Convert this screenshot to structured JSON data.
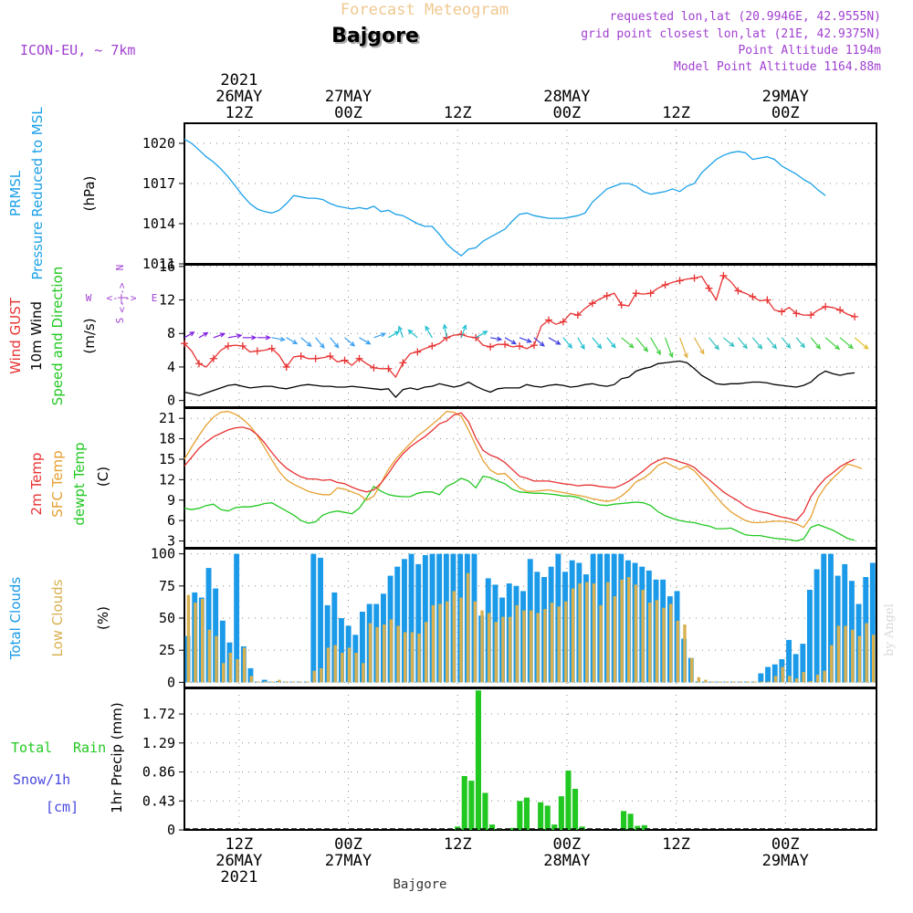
{
  "header": {
    "product": "Forecast Meteogram",
    "location": "Bajgore",
    "model": "ICON-EU, ~ 7km",
    "requested": "requested lon,lat (20.9946E, 42.9555N)",
    "grid_point": "grid point closest lon,lat (21E, 42.9375N)",
    "point_altitude": "Point Altitude 1194m",
    "model_altitude": "Model Point Altitude 1164.88m",
    "credit": "by Angel",
    "footer_location": "Bajgore"
  },
  "time_axis": {
    "year": "2021",
    "top_labels": [
      {
        "h": 18,
        "l1": "26MAY",
        "l2": "12Z",
        "year": "2021"
      },
      {
        "h": 30,
        "l1": "27MAY",
        "l2": "00Z"
      },
      {
        "h": 42,
        "l1": "",
        "l2": "12Z"
      },
      {
        "h": 54,
        "l1": "28MAY",
        "l2": "00Z"
      },
      {
        "h": 66,
        "l1": "",
        "l2": "12Z"
      },
      {
        "h": 78,
        "l1": "29MAY",
        "l2": "00Z"
      }
    ],
    "bottom_labels": [
      {
        "h": 18,
        "l1": "12Z",
        "l2": "26MAY",
        "year": "2021"
      },
      {
        "h": 30,
        "l1": "00Z",
        "l2": "27MAY"
      },
      {
        "h": 42,
        "l1": "12Z",
        "l2": ""
      },
      {
        "h": 54,
        "l1": "00Z",
        "l2": "28MAY"
      },
      {
        "h": 66,
        "l1": "12Z",
        "l2": ""
      },
      {
        "h": 78,
        "l1": "00Z",
        "l2": "29MAY"
      }
    ],
    "x_range_hours": [
      12,
      88
    ]
  },
  "colors": {
    "pressure": "#1aa0e8",
    "gust": "#e83232",
    "wind10": "#000000",
    "temp2m": "#e83232",
    "sfc_temp": "#e6a030",
    "dewpt": "#22c822",
    "total_clouds": "#1a9ae8",
    "low_clouds": "#d8b050",
    "rain": "#22c822",
    "snow": "#4848e0",
    "purple": "#a040d0",
    "header_orange": "#f0c890"
  },
  "chart_data": [
    {
      "type": "line",
      "panel": "pressure",
      "ylabel_1": "PRMSL",
      "ylabel_2": "Pressure Reduced to MSL",
      "unit": "(hPa)",
      "ylim": [
        1011,
        1021.5
      ],
      "yticks": [
        1011,
        1014,
        1017,
        1020
      ],
      "series": [
        {
          "values": [
            1020.3,
            1020.0,
            1019.5,
            1019.0,
            1018.6,
            1018.1,
            1017.5,
            1016.8,
            1016.1,
            1015.5,
            1015.1,
            1014.9,
            1014.8,
            1015.0,
            1015.5,
            1016.1,
            1016.0,
            1015.9,
            1015.9,
            1015.8,
            1015.5,
            1015.3,
            1015.2,
            1015.1,
            1015.2,
            1015.1,
            1015.3,
            1014.9,
            1015.0,
            1014.7,
            1014.6,
            1014.3,
            1014.0,
            1013.8,
            1013.8,
            1013.2,
            1012.5,
            1012.0,
            1011.6,
            1012.1,
            1012.2,
            1012.7,
            1013.0,
            1013.3,
            1013.6,
            1014.2,
            1014.7,
            1014.8,
            1014.6,
            1014.5,
            1014.4,
            1014.4,
            1014.4,
            1014.5,
            1014.6,
            1014.8,
            1015.6,
            1016.1,
            1016.6,
            1016.8,
            1017.0,
            1017.0,
            1016.8,
            1016.4,
            1016.2,
            1016.3,
            1016.4,
            1016.6,
            1016.4,
            1016.8,
            1017.0,
            1017.8,
            1018.3,
            1018.8,
            1019.1,
            1019.3,
            1019.4,
            1019.3,
            1018.8,
            1018.9,
            1019.0,
            1018.8,
            1018.3,
            1018.0,
            1017.7,
            1017.3,
            1017.0,
            1016.5,
            1016.1
          ]
        }
      ]
    },
    {
      "type": "line",
      "panel": "wind",
      "ylabel_1": "Wind GUST",
      "ylabel_2": "10m Wind",
      "ylabel_3": "Speed and Direction",
      "unit": "(m/s)",
      "compass": {
        "n": "N",
        "s": "S",
        "w": "W",
        "e": "E",
        "arrow_h": "<-|->",
        "arrow_v": "<-|->"
      },
      "ylim": [
        -0.8,
        16.2
      ],
      "yticks": [
        0,
        4,
        8,
        12,
        16
      ],
      "gust": [
        6.8,
        5.9,
        4.4,
        4.0,
        5.0,
        6.0,
        6.5,
        6.6,
        6.5,
        5.8,
        5.9,
        6.0,
        6.2,
        5.4,
        4.0,
        5.2,
        5.3,
        5.0,
        5.0,
        5.1,
        5.3,
        4.6,
        4.8,
        4.2,
        5.0,
        4.4,
        3.9,
        3.8,
        3.8,
        2.8,
        4.5,
        5.6,
        5.8,
        6.2,
        6.5,
        6.8,
        7.5,
        7.8,
        7.9,
        7.6,
        7.5,
        6.6,
        6.4,
        6.7,
        6.7,
        6.4,
        6.5,
        6.2,
        6.6,
        8.9,
        9.6,
        9.1,
        9.4,
        10.4,
        10.2,
        11.0,
        11.6,
        12.1,
        12.5,
        12.8,
        11.4,
        11.3,
        12.8,
        12.7,
        12.8,
        13.4,
        13.8,
        14.1,
        14.3,
        14.5,
        14.6,
        14.8,
        13.4,
        12.0,
        14.9,
        14.2,
        13.1,
        12.8,
        12.4,
        11.9,
        12.0,
        10.8,
        10.6,
        11.1,
        10.4,
        10.2,
        10.2,
        10.8,
        11.2,
        11.1,
        10.8,
        10.3,
        10.0
      ],
      "wind10": [
        1.0,
        0.8,
        0.6,
        0.9,
        1.2,
        1.5,
        1.8,
        1.9,
        1.7,
        1.5,
        1.6,
        1.7,
        1.7,
        1.5,
        1.4,
        1.6,
        1.8,
        1.9,
        1.8,
        1.7,
        1.7,
        1.6,
        1.6,
        1.7,
        1.6,
        1.5,
        1.4,
        1.3,
        1.4,
        0.4,
        1.3,
        1.5,
        1.3,
        1.6,
        1.7,
        2.0,
        1.8,
        1.6,
        1.8,
        2.2,
        1.7,
        1.3,
        1.0,
        1.4,
        1.5,
        1.5,
        1.5,
        1.9,
        1.7,
        1.6,
        1.8,
        1.9,
        1.8,
        1.6,
        1.7,
        1.9,
        2.0,
        1.8,
        1.7,
        1.9,
        2.6,
        2.8,
        3.5,
        3.8,
        4.0,
        4.4,
        4.5,
        4.6,
        4.7,
        4.5,
        3.8,
        3.0,
        2.5,
        2.0,
        1.9,
        2.0,
        2.0,
        2.1,
        2.2,
        2.2,
        2.1,
        1.9,
        1.8,
        1.7,
        1.6,
        1.8,
        2.2,
        3.0,
        3.5,
        3.2,
        3.0,
        3.2,
        3.3
      ],
      "wind_dir_deg": [
        240,
        240,
        240,
        240,
        250,
        260,
        260,
        270,
        270,
        270,
        270,
        270,
        280,
        300,
        300,
        300,
        310,
        320,
        320,
        320,
        320,
        320,
        310,
        300,
        300,
        290,
        250,
        240,
        240,
        200,
        160,
        140,
        130,
        140,
        150,
        160,
        170,
        180,
        200,
        220,
        240,
        260,
        280,
        290,
        300,
        300,
        290,
        300,
        310,
        310,
        300,
        300,
        320,
        320,
        330,
        330,
        320,
        320,
        320,
        320,
        310,
        320,
        320,
        330,
        330,
        330,
        340,
        340,
        340,
        340,
        330,
        320,
        320,
        320,
        310,
        320,
        320,
        320,
        320,
        320,
        320,
        320,
        320,
        320,
        320,
        320,
        320,
        310,
        310,
        310,
        310,
        310,
        310
      ]
    },
    {
      "type": "line",
      "panel": "temperature",
      "ylabel_1": "2m Temp",
      "ylabel_2": "SFC Temp",
      "ylabel_3": "dewpt Temp",
      "unit": "(C)",
      "ylim": [
        2,
        22.5
      ],
      "yticks": [
        3,
        6,
        9,
        12,
        15,
        18,
        21
      ],
      "temp2m": [
        14.0,
        15.3,
        16.6,
        17.5,
        18.3,
        18.8,
        19.3,
        19.6,
        19.7,
        19.4,
        18.6,
        17.4,
        16.0,
        14.7,
        13.7,
        13.0,
        12.4,
        12.1,
        12.1,
        11.9,
        12.0,
        11.6,
        11.4,
        10.9,
        10.5,
        10.2,
        10.5,
        11.5,
        12.9,
        14.5,
        15.8,
        16.8,
        17.6,
        18.3,
        19.2,
        20.2,
        20.6,
        21.5,
        21.8,
        20.5,
        18.1,
        16.3,
        15.6,
        15.2,
        14.5,
        13.5,
        12.5,
        12.2,
        11.8,
        11.8,
        11.8,
        11.6,
        11.4,
        11.3,
        11.1,
        11.2,
        11.2,
        11.0,
        10.9,
        10.8,
        11.2,
        11.8,
        12.5,
        13.3,
        14.2,
        14.8,
        15.2,
        15.0,
        14.6,
        14.3,
        13.8,
        12.8,
        12.0,
        11.1,
        10.2,
        9.5,
        8.9,
        8.1,
        7.6,
        7.3,
        7.1,
        6.8,
        6.5,
        6.3,
        6.0,
        7.2,
        9.5,
        11.0,
        12.2,
        13.0,
        13.9,
        14.5,
        15.0
      ],
      "sfc_temp": [
        15.0,
        16.8,
        18.5,
        20.0,
        21.2,
        21.9,
        22.0,
        21.6,
        20.9,
        19.9,
        18.5,
        16.7,
        14.9,
        13.2,
        12.0,
        11.3,
        10.8,
        10.3,
        10.0,
        9.8,
        9.8,
        10.8,
        10.6,
        10.2,
        9.8,
        9.0,
        9.6,
        11.5,
        13.5,
        15.0,
        16.2,
        17.3,
        18.4,
        19.2,
        20.1,
        21.0,
        22.0,
        21.9,
        21.3,
        19.3,
        17.0,
        14.8,
        13.4,
        12.8,
        12.9,
        11.9,
        10.8,
        10.3,
        10.3,
        10.4,
        10.5,
        10.3,
        10.1,
        9.9,
        9.7,
        9.5,
        9.2,
        9.0,
        8.8,
        9.0,
        9.6,
        10.5,
        11.7,
        12.2,
        13.0,
        14.1,
        14.6,
        14.0,
        13.5,
        14.0,
        13.3,
        12.1,
        10.8,
        9.5,
        8.3,
        7.3,
        6.6,
        6.0,
        5.7,
        5.7,
        5.8,
        5.9,
        5.9,
        5.8,
        5.5,
        5.0,
        6.5,
        9.4,
        11.0,
        12.2,
        13.2,
        14.3,
        14.0,
        13.6
      ],
      "dewpt": [
        7.8,
        7.6,
        7.8,
        8.2,
        8.4,
        7.6,
        7.4,
        7.9,
        8.0,
        8.0,
        8.2,
        8.5,
        8.6,
        8.0,
        7.4,
        6.8,
        6.0,
        5.6,
        5.8,
        6.8,
        7.2,
        7.4,
        7.2,
        7.0,
        7.8,
        9.3,
        11.0,
        10.3,
        9.8,
        9.6,
        9.5,
        9.5,
        10.0,
        10.2,
        10.2,
        9.8,
        11.0,
        11.5,
        12.2,
        11.8,
        10.8,
        12.5,
        12.3,
        11.8,
        11.4,
        10.6,
        10.2,
        10.1,
        10.0,
        10.0,
        9.9,
        9.8,
        9.6,
        9.6,
        9.4,
        9.0,
        8.6,
        8.3,
        8.2,
        8.4,
        8.5,
        8.6,
        8.7,
        8.6,
        8.2,
        7.3,
        6.7,
        6.3,
        6.0,
        5.8,
        5.7,
        5.4,
        5.2,
        4.8,
        4.8,
        4.9,
        4.4,
        3.9,
        3.8,
        3.8,
        3.6,
        3.4,
        3.3,
        3.2,
        3.0,
        3.3,
        5.0,
        5.4,
        5.0,
        4.6,
        4.0,
        3.4,
        3.1
      ]
    },
    {
      "type": "bar",
      "panel": "clouds",
      "ylabel_1": "Total Clouds",
      "ylabel_2": "Low Clouds",
      "unit": "(%)",
      "ylim": [
        -4,
        104
      ],
      "yticks": [
        0,
        25,
        50,
        75,
        100
      ],
      "total": [
        36,
        70,
        66,
        89,
        73,
        48,
        31,
        100,
        28,
        11,
        0,
        2,
        0,
        1,
        0,
        0,
        0,
        0,
        100,
        97,
        60,
        70,
        50,
        44,
        37,
        55,
        61,
        61,
        69,
        83,
        90,
        96,
        100,
        92,
        99,
        100,
        100,
        100,
        100,
        100,
        100,
        100,
        52,
        81,
        76,
        66,
        77,
        75,
        71,
        96,
        86,
        82,
        90,
        100,
        86,
        95,
        93,
        84,
        100,
        100,
        100,
        100,
        100,
        95,
        93,
        90,
        87,
        80,
        80,
        67,
        71,
        34,
        19,
        0,
        0,
        0,
        0,
        0,
        0,
        0,
        0,
        0,
        7,
        12,
        14,
        18,
        33,
        22,
        30,
        72,
        88,
        100,
        100,
        83,
        92,
        79,
        61,
        82,
        93
      ],
      "low": [
        68,
        62,
        65,
        41,
        36,
        15,
        23,
        18,
        27,
        5,
        0,
        0,
        0,
        2,
        0,
        0,
        0,
        0,
        9,
        11,
        27,
        29,
        23,
        27,
        23,
        15,
        46,
        43,
        45,
        49,
        44,
        39,
        39,
        38,
        47,
        60,
        61,
        63,
        71,
        66,
        85,
        63,
        56,
        54,
        47,
        51,
        51,
        60,
        56,
        56,
        54,
        57,
        62,
        59,
        63,
        73,
        77,
        78,
        77,
        60,
        78,
        67,
        80,
        82,
        76,
        72,
        62,
        64,
        58,
        61,
        48,
        45,
        19,
        4,
        2,
        0,
        0,
        0,
        0,
        0,
        0,
        0,
        0,
        0,
        5,
        12,
        5,
        3,
        8,
        1,
        6,
        9,
        29,
        44,
        44,
        41,
        36,
        46,
        37
      ]
    },
    {
      "type": "bar",
      "panel": "precip",
      "ylabel_left_1": "Total",
      "ylabel_left_2": "Rain",
      "ylabel_left_3": "Snow/1h",
      "ylabel_left_4": "[cm]",
      "ylabel": "1hr Precip (mm)",
      "ylim": [
        0,
        2.1
      ],
      "yticks": [
        0,
        0.43,
        0.86,
        1.29,
        1.72
      ],
      "ytick_labels": [
        "0",
        "0.43",
        "0.86",
        "1.29",
        "1.72"
      ],
      "values": [
        0,
        0,
        0,
        0,
        0,
        0,
        0,
        0,
        0,
        0,
        0,
        0,
        0,
        0,
        0,
        0,
        0,
        0,
        0,
        0,
        0,
        0,
        0,
        0,
        0,
        0,
        0,
        0,
        0,
        0,
        0,
        0,
        0,
        0,
        0,
        0,
        0,
        0,
        0,
        0.05,
        0.8,
        0.73,
        2.07,
        0.55,
        0.08,
        0.01,
        0,
        0.03,
        0.43,
        0.48,
        0,
        0.41,
        0.36,
        0.08,
        0.5,
        0.88,
        0.61,
        0.05,
        0,
        0,
        0,
        0,
        0,
        0.28,
        0.24,
        0.06,
        0.07,
        0,
        0,
        0,
        0,
        0,
        0,
        0,
        0,
        0,
        0,
        0,
        0,
        0,
        0,
        0,
        0,
        0,
        0,
        0,
        0,
        0,
        0,
        0,
        0,
        0,
        0,
        0,
        0,
        0,
        0,
        0,
        0,
        0
      ]
    }
  ]
}
